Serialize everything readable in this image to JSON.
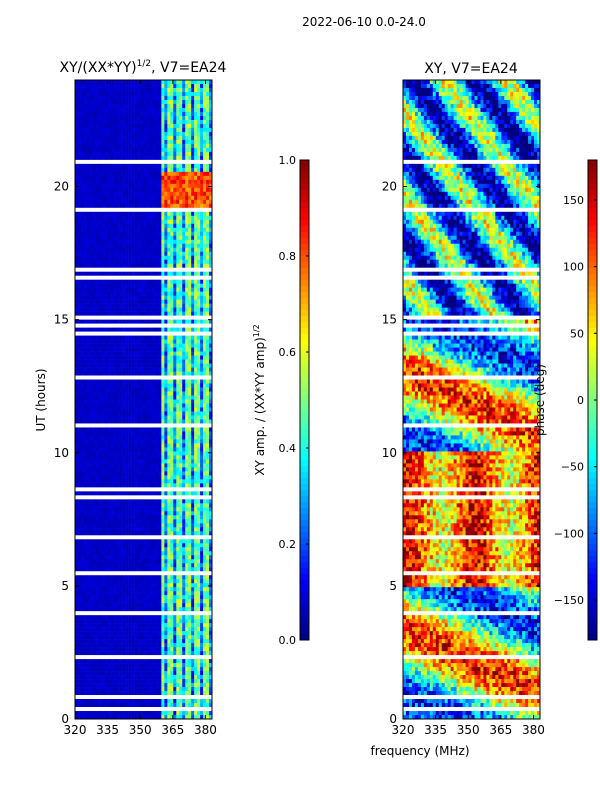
{
  "figure": {
    "suptitle": "2022-06-10 0.0-24.0",
    "shared_xlabel": "frequency (MHz)"
  },
  "chart_data": [
    {
      "type": "heatmap",
      "title": "XY/(XX*YY)¹ᐟ², V7=EA24",
      "title_main": "XY/(XX*YY)",
      "title_sup": "1/2",
      "title_tail": ", V7=EA24",
      "xlabel": "",
      "ylabel": "UT (hours)",
      "xlim": [
        320,
        383
      ],
      "ylim": [
        0,
        24
      ],
      "xticks": [
        320,
        335,
        350,
        365,
        380
      ],
      "yticks": [
        0,
        5,
        10,
        15,
        20
      ],
      "colorbar": {
        "label": "XY amp. / (XX*YY amp)",
        "label_sup": "1/2",
        "range": [
          0.0,
          1.0
        ],
        "ticks": [
          "0.0",
          "0.2",
          "0.4",
          "0.6",
          "0.8",
          "1.0"
        ],
        "colormap": "jet"
      },
      "background_value": 0.05,
      "active_band_mhz": [
        360,
        383
      ],
      "hot_spot": {
        "ut_range": [
          19.0,
          20.5
        ],
        "value": 0.9
      }
    },
    {
      "type": "heatmap",
      "title": "XY, V7=EA24",
      "xlabel": "frequency (MHz)",
      "ylabel": "",
      "xlim": [
        320,
        383
      ],
      "ylim": [
        0,
        24
      ],
      "xticks": [
        320,
        335,
        350,
        365,
        380
      ],
      "yticks": [
        0,
        5,
        10,
        15,
        20
      ],
      "colorbar": {
        "label": "phase (deg)",
        "range": [
          -180,
          180
        ],
        "ticks": [
          "150",
          "100",
          "50",
          "0",
          "−50",
          "−100",
          "−150"
        ],
        "tick_values": [
          150,
          100,
          50,
          0,
          -50,
          -100,
          -150
        ],
        "colormap": "jet"
      }
    }
  ],
  "colors": {
    "jet_stops": [
      "#00007f",
      "#0000ff",
      "#007fff",
      "#00ffff",
      "#7fff7f",
      "#ffff00",
      "#ff7f00",
      "#ff0000",
      "#7f0000"
    ],
    "gap": "#ffffff",
    "axis": "#000000"
  }
}
